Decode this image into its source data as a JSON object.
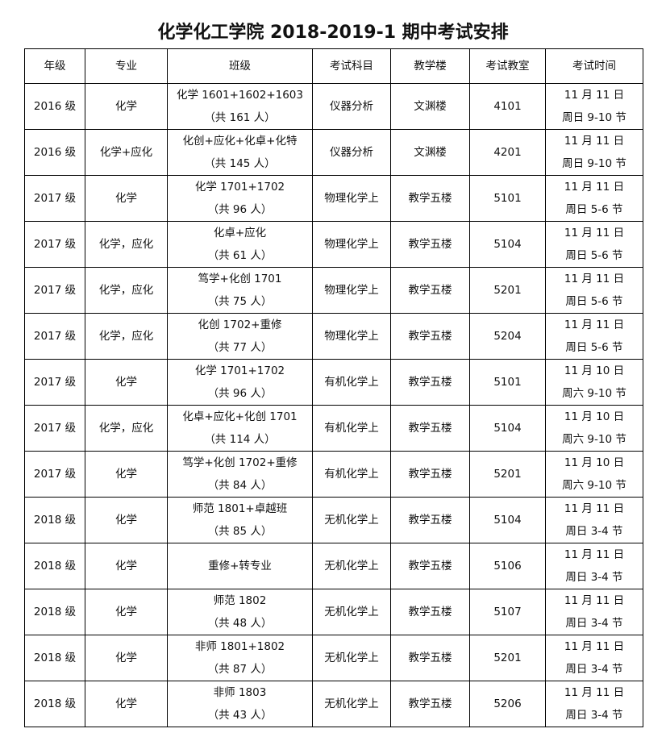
{
  "title": "化学化工学院 2018-2019-1 期中考试安排",
  "headers": [
    "年级",
    "专业",
    "班级",
    "考试科目",
    "教学楼",
    "考试教室",
    "考试时间"
  ],
  "rows": [
    {
      "grade": "2016 级",
      "major": "化学",
      "class_line1": "化学 1601+1602+1603",
      "class_line2": "（共 161 人）",
      "subject": "仪器分析",
      "building": "文渊楼",
      "room": "4101",
      "time_line1": "11 月 11 日",
      "time_line2": "周日 9-10 节"
    },
    {
      "grade": "2016 级",
      "major": "化学+应化",
      "class_line1": "化创+应化+化卓+化特",
      "class_line2": "（共 145 人）",
      "subject": "仪器分析",
      "building": "文渊楼",
      "room": "4201",
      "time_line1": "11 月 11 日",
      "time_line2": "周日 9-10 节"
    },
    {
      "grade": "2017 级",
      "major": "化学",
      "class_line1": "化学 1701+1702",
      "class_line2": "（共 96 人）",
      "subject": "物理化学上",
      "building": "教学五楼",
      "room": "5101",
      "time_line1": "11 月 11 日",
      "time_line2": "周日 5-6 节"
    },
    {
      "grade": "2017 级",
      "major": "化学，应化",
      "class_line1": "化卓+应化",
      "class_line2": "（共 61 人）",
      "subject": "物理化学上",
      "building": "教学五楼",
      "room": "5104",
      "time_line1": "11 月 11 日",
      "time_line2": "周日 5-6 节"
    },
    {
      "grade": "2017 级",
      "major": "化学，应化",
      "class_line1": "笃学+化创 1701",
      "class_line2": "（共 75 人）",
      "subject": "物理化学上",
      "building": "教学五楼",
      "room": "5201",
      "time_line1": "11 月 11 日",
      "time_line2": "周日 5-6 节"
    },
    {
      "grade": "2017 级",
      "major": "化学，应化",
      "class_line1": "化创 1702+重修",
      "class_line2": "（共 77 人）",
      "subject": "物理化学上",
      "building": "教学五楼",
      "room": "5204",
      "time_line1": "11 月 11 日",
      "time_line2": "周日 5-6 节"
    },
    {
      "grade": "2017 级",
      "major": "化学",
      "class_line1": "化学 1701+1702",
      "class_line2": "（共 96 人）",
      "subject": "有机化学上",
      "building": "教学五楼",
      "room": "5101",
      "time_line1": "11 月 10 日",
      "time_line2": "周六 9-10 节"
    },
    {
      "grade": "2017 级",
      "major": "化学，应化",
      "class_line1": "化卓+应化+化创 1701",
      "class_line2": "（共 114 人）",
      "subject": "有机化学上",
      "building": "教学五楼",
      "room": "5104",
      "time_line1": "11 月 10 日",
      "time_line2": "周六 9-10 节"
    },
    {
      "grade": "2017 级",
      "major": "化学",
      "class_line1": "笃学+化创 1702+重修",
      "class_line2": "（共 84 人）",
      "subject": "有机化学上",
      "building": "教学五楼",
      "room": "5201",
      "time_line1": "11 月 10 日",
      "time_line2": "周六 9-10 节"
    },
    {
      "grade": "2018 级",
      "major": "化学",
      "class_line1": "师范 1801+卓越班",
      "class_line2": "（共 85 人）",
      "subject": "无机化学上",
      "building": "教学五楼",
      "room": "5104",
      "time_line1": "11 月 11 日",
      "time_line2": "周日 3-4 节"
    },
    {
      "grade": "2018 级",
      "major": "化学",
      "class_line1": "重修+转专业",
      "class_line2": "",
      "subject": "无机化学上",
      "building": "教学五楼",
      "room": "5106",
      "time_line1": "11 月 11 日",
      "time_line2": "周日 3-4 节"
    },
    {
      "grade": "2018 级",
      "major": "化学",
      "class_line1": "师范 1802",
      "class_line2": "（共 48 人）",
      "subject": "无机化学上",
      "building": "教学五楼",
      "room": "5107",
      "time_line1": "11 月 11 日",
      "time_line2": "周日 3-4 节"
    },
    {
      "grade": "2018 级",
      "major": "化学",
      "class_line1": "非师 1801+1802",
      "class_line2": "（共 87 人）",
      "subject": "无机化学上",
      "building": "教学五楼",
      "room": "5201",
      "time_line1": "11 月 11 日",
      "time_line2": "周日 3-4 节"
    },
    {
      "grade": "2018 级",
      "major": "化学",
      "class_line1": "非师 1803",
      "class_line2": "（共 43 人）",
      "subject": "无机化学上",
      "building": "教学五楼",
      "room": "5206",
      "time_line1": "11 月 11 日",
      "time_line2": "周日 3-4 节"
    }
  ]
}
